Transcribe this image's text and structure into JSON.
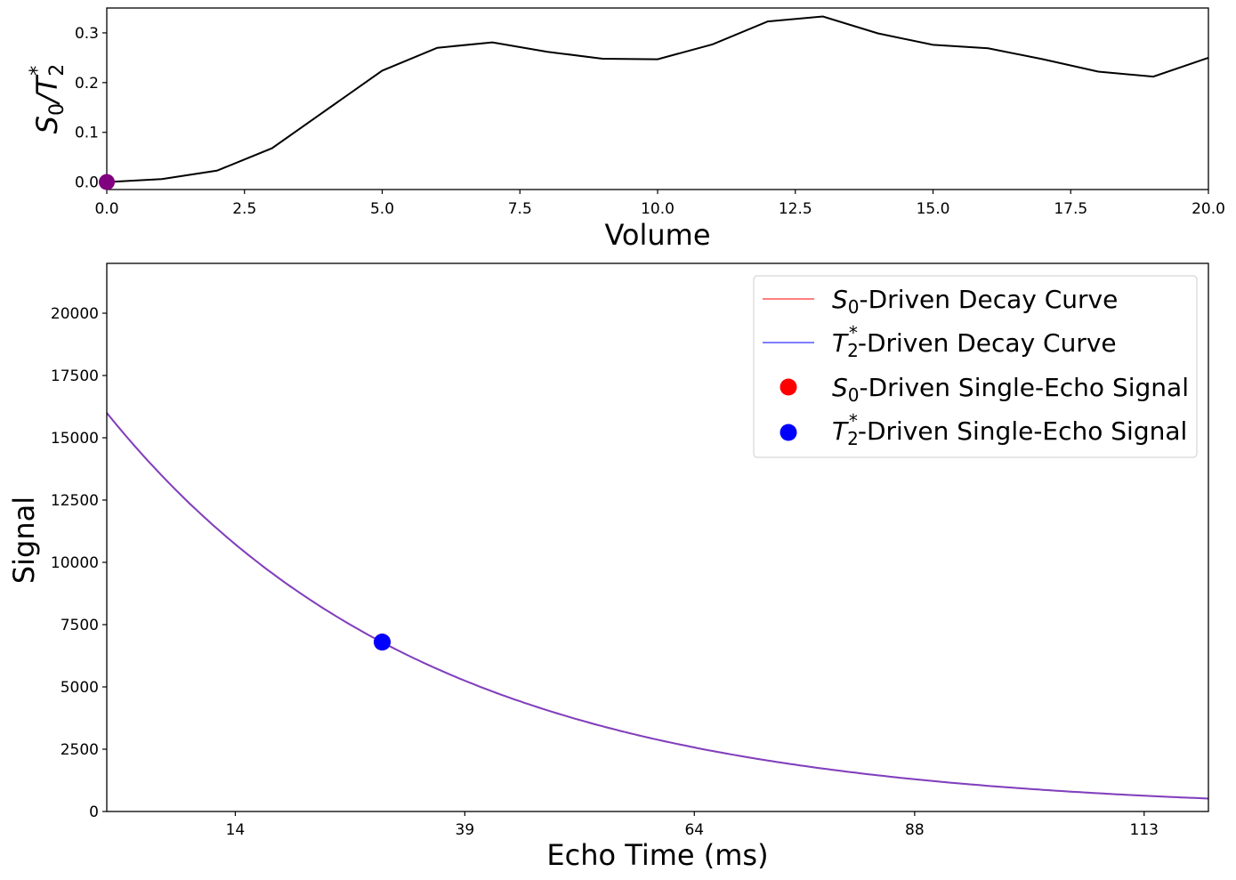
{
  "chart_data": [
    {
      "type": "line",
      "title": "",
      "xlabel": "Volume",
      "ylabel_base": "S",
      "ylabel_sub": "0",
      "ylabel_mid": "/T",
      "ylabel_sub2": "2",
      "ylabel_sup2": "*",
      "xlim": [
        0,
        20
      ],
      "ylim": [
        -0.015,
        0.35
      ],
      "xticks": [
        0,
        2.5,
        5,
        7.5,
        10,
        12.5,
        15,
        17.5,
        20
      ],
      "xtick_labels": [
        "0.0",
        "2.5",
        "5.0",
        "7.5",
        "10.0",
        "12.5",
        "15.0",
        "17.5",
        "20.0"
      ],
      "yticks": [
        0,
        0.1,
        0.2,
        0.3
      ],
      "ytick_labels": [
        "0.0",
        "0.1",
        "0.2",
        "0.3"
      ],
      "series": [
        {
          "color": "#000000",
          "x": [
            0,
            1,
            2,
            3,
            4,
            5,
            6,
            7,
            8,
            9,
            10,
            11,
            12,
            13,
            14,
            15,
            16,
            17,
            18,
            19,
            20
          ],
          "y": [
            0.0,
            0.006,
            0.023,
            0.068,
            0.146,
            0.224,
            0.27,
            0.281,
            0.262,
            0.248,
            0.247,
            0.277,
            0.323,
            0.333,
            0.299,
            0.276,
            0.269,
            0.247,
            0.222,
            0.212,
            0.25
          ]
        }
      ],
      "marker": {
        "x": 0,
        "y": 0.0,
        "color": "#800080"
      }
    },
    {
      "type": "line",
      "title": "",
      "xlabel": "Echo Time (ms)",
      "ylabel": "Signal",
      "xlim": [
        0,
        120
      ],
      "ylim": [
        0,
        22000
      ],
      "xticks": [
        14,
        39,
        64,
        88,
        113
      ],
      "xtick_labels": [
        "14",
        "39",
        "64",
        "88",
        "113"
      ],
      "yticks": [
        0,
        2500,
        5000,
        7500,
        10000,
        12500,
        15000,
        17500,
        20000
      ],
      "ytick_labels": [
        "0",
        "2500",
        "5000",
        "7500",
        "10000",
        "12500",
        "15000",
        "17500",
        "20000"
      ],
      "curve": {
        "s0": 16000,
        "t2star": 35
      },
      "series": [
        {
          "label_sym": "S",
          "label_sub": "0",
          "label_sup": "",
          "label_rest": "-Driven Decay Curve",
          "color": "#ff0000",
          "alpha": 0.5
        },
        {
          "label_sym": "T",
          "label_sub": "2",
          "label_sup": "*",
          "label_rest": "-Driven Decay Curve",
          "color": "#0000ff",
          "alpha": 0.5
        }
      ],
      "points": [
        {
          "label_sym": "S",
          "label_sub": "0",
          "label_sup": "",
          "label_rest": "-Driven Single-Echo Signal",
          "color": "#ff0000",
          "x": 30,
          "y": 6800
        },
        {
          "label_sym": "T",
          "label_sub": "2",
          "label_sup": "*",
          "label_rest": "-Driven Single-Echo Signal",
          "color": "#0000ff",
          "x": 30,
          "y": 6800
        }
      ],
      "legend_position": "top-right"
    }
  ]
}
